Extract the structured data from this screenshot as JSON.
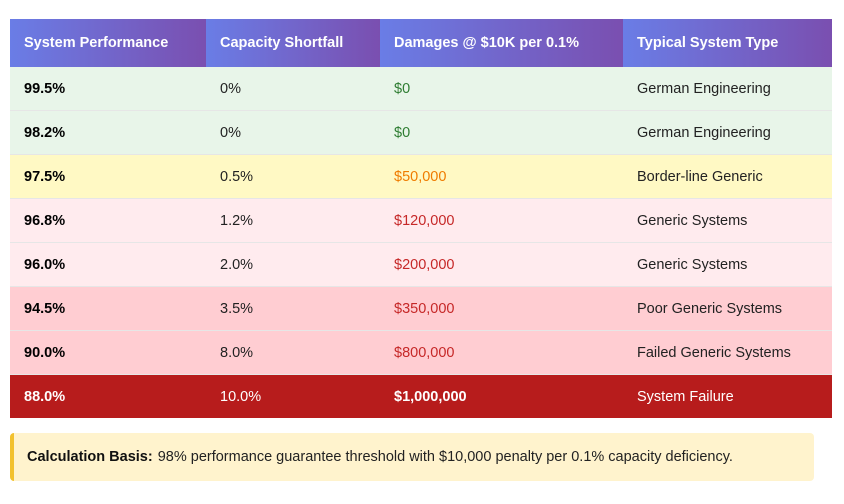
{
  "table": {
    "headers": [
      "System Performance",
      "Capacity Shortfall",
      "Damages @ $10K per 0.1%",
      "Typical System Type"
    ],
    "rows": [
      [
        "99.5%",
        "0%",
        "$0",
        "German Engineering"
      ],
      [
        "98.2%",
        "0%",
        "$0",
        "German Engineering"
      ],
      [
        "97.5%",
        "0.5%",
        "$50,000",
        "Border-line Generic"
      ],
      [
        "96.8%",
        "1.2%",
        "$120,000",
        "Generic Systems"
      ],
      [
        "96.0%",
        "2.0%",
        "$200,000",
        "Generic Systems"
      ],
      [
        "94.5%",
        "3.5%",
        "$350,000",
        "Poor Generic Systems"
      ],
      [
        "90.0%",
        "8.0%",
        "$800,000",
        "Failed Generic Systems"
      ],
      [
        "88.0%",
        "10.0%",
        "$1,000,000",
        "System Failure"
      ]
    ]
  },
  "note": {
    "label": "Calculation Basis:",
    "text": "98% performance guarantee threshold with $10,000 penalty per 0.1% capacity deficiency."
  }
}
